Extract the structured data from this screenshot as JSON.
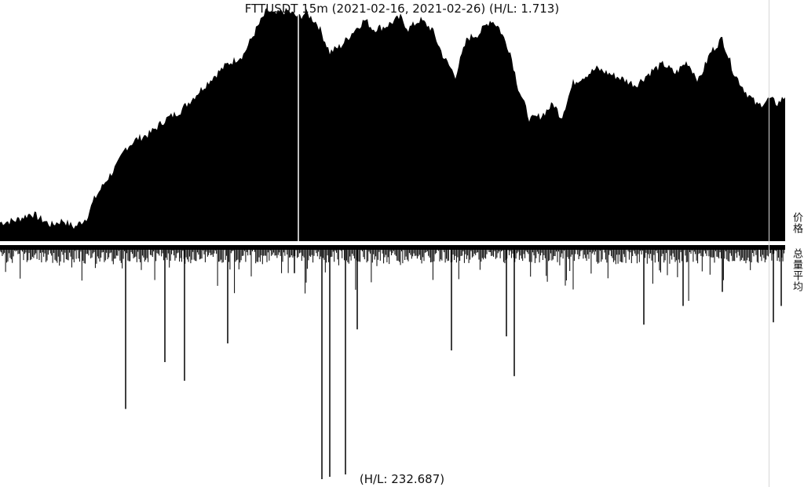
{
  "chart_data": {
    "type": "area",
    "title": "FTTUSDT 15m (2021-02-16, 2021-02-26) (H/L: 1.713)",
    "volume_note": "(H/L: 232.687)",
    "price_label": "价格",
    "volume_label": "总量平均",
    "price_high_low_ratio": 1.713,
    "volume_high_low_ratio": 232.687,
    "price_envelope": {
      "x": [
        0,
        0.02,
        0.04,
        0.05,
        0.065,
        0.08,
        0.095,
        0.11,
        0.12,
        0.135,
        0.15,
        0.16,
        0.175,
        0.19,
        0.21,
        0.23,
        0.25,
        0.27,
        0.29,
        0.31,
        0.325,
        0.34,
        0.35,
        0.365,
        0.38,
        0.39,
        0.405,
        0.42,
        0.435,
        0.45,
        0.465,
        0.475,
        0.49,
        0.51,
        0.52,
        0.535,
        0.55,
        0.565,
        0.58,
        0.595,
        0.61,
        0.625,
        0.635,
        0.65,
        0.66,
        0.675,
        0.69,
        0.705,
        0.715,
        0.73,
        0.745,
        0.76,
        0.775,
        0.79,
        0.81,
        0.83,
        0.845,
        0.86,
        0.875,
        0.89,
        0.905,
        0.92,
        0.935,
        0.95,
        0.965,
        0.98,
        0.99,
        1.0
      ],
      "y": [
        0.08,
        0.09,
        0.12,
        0.1,
        0.07,
        0.09,
        0.06,
        0.1,
        0.18,
        0.26,
        0.33,
        0.4,
        0.44,
        0.46,
        0.52,
        0.56,
        0.63,
        0.7,
        0.76,
        0.8,
        0.9,
        0.99,
        0.97,
        0.99,
        0.96,
        0.98,
        0.93,
        0.81,
        0.84,
        0.9,
        0.95,
        0.91,
        0.92,
        0.96,
        0.91,
        0.95,
        0.91,
        0.79,
        0.71,
        0.87,
        0.89,
        0.95,
        0.92,
        0.81,
        0.66,
        0.52,
        0.54,
        0.59,
        0.53,
        0.68,
        0.71,
        0.74,
        0.72,
        0.7,
        0.67,
        0.73,
        0.76,
        0.72,
        0.77,
        0.69,
        0.81,
        0.87,
        0.72,
        0.64,
        0.58,
        0.61,
        0.59,
        0.62
      ]
    },
    "volume_spikes": {
      "x": [
        0.16,
        0.21,
        0.235,
        0.29,
        0.375,
        0.41,
        0.42,
        0.44,
        0.455,
        0.575,
        0.645,
        0.655,
        0.82,
        0.87,
        0.92,
        0.985,
        0.995
      ],
      "y": [
        0.7,
        0.5,
        0.58,
        0.42,
        0.12,
        1.0,
        0.99,
        0.98,
        0.36,
        0.45,
        0.39,
        0.56,
        0.34,
        0.26,
        0.2,
        0.33,
        0.26
      ]
    },
    "grid": false,
    "legend": "none"
  }
}
